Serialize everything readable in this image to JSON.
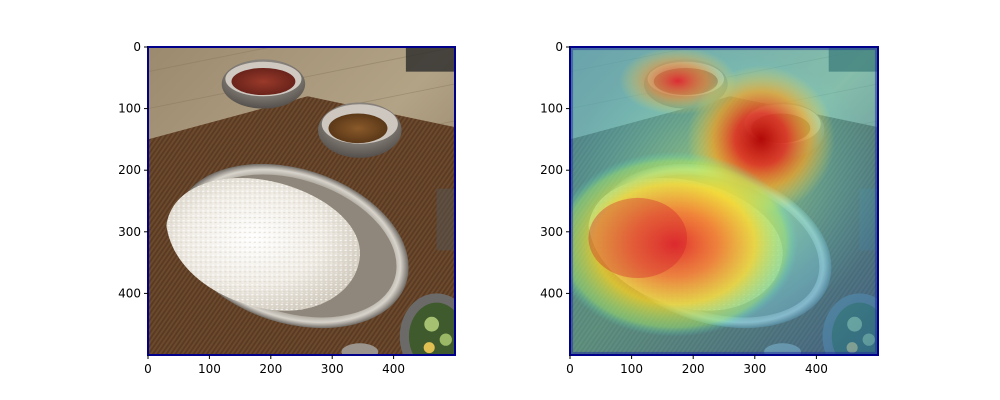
{
  "figure": {
    "background": "#ffffff",
    "frame_color": "#00008b"
  },
  "chart_data": [
    {
      "type": "image",
      "content": "photo: plate of white rice in an oval steel tray, two steel bowls of curry, cucumber dish, woven placemat on wooden table",
      "xlim": [
        0,
        500
      ],
      "ylim": [
        500,
        0
      ],
      "x_ticks": [
        0,
        100,
        200,
        300,
        400
      ],
      "y_ticks": [
        0,
        100,
        200,
        300,
        400
      ],
      "x_tick_labels": [
        "0",
        "100",
        "200",
        "300",
        "400"
      ],
      "y_tick_labels": [
        "0",
        "100",
        "200",
        "300",
        "400"
      ],
      "title": "",
      "xlabel": "",
      "ylabel": ""
    },
    {
      "type": "heatmap",
      "content": "same photo with jet colormap attention overlay; strongest activation on the rice (left-center) and the right curry bowl",
      "xlim": [
        0,
        500
      ],
      "ylim": [
        500,
        0
      ],
      "x_ticks": [
        0,
        100,
        200,
        300,
        400
      ],
      "y_ticks": [
        0,
        100,
        200,
        300,
        400
      ],
      "x_tick_labels": [
        "0",
        "100",
        "200",
        "300",
        "400"
      ],
      "y_tick_labels": [
        "0",
        "100",
        "200",
        "300",
        "400"
      ],
      "hotspots": [
        {
          "x": 150,
          "y": 300,
          "intensity": 1.0
        },
        {
          "x": 310,
          "y": 130,
          "intensity": 1.0
        },
        {
          "x": 170,
          "y": 60,
          "intensity": 0.85
        }
      ],
      "title": "",
      "xlabel": "",
      "ylabel": ""
    }
  ]
}
